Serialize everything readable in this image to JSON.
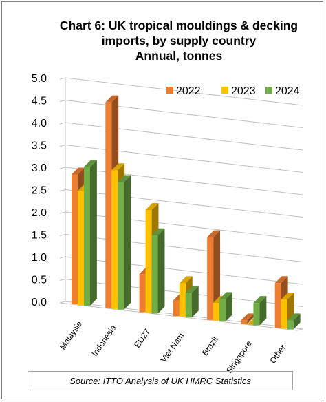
{
  "chart_data": {
    "type": "bar",
    "title_lines": [
      "Chart 6: UK tropical mouldings & decking",
      "imports, by supply country",
      "Annual, tonnes"
    ],
    "categories": [
      "Malaysia",
      "Indonesia",
      "EU27",
      "Viet Nam",
      "Brazil",
      "Singapore",
      "Other"
    ],
    "series": [
      {
        "name": "2022",
        "color": "#ED7D31",
        "values": [
          2.9,
          4.6,
          0.85,
          0.35,
          1.85,
          0.08,
          1.0
        ]
      },
      {
        "name": "2023",
        "color": "#FFC000",
        "values": [
          2.55,
          3.1,
          2.3,
          0.75,
          0.4,
          0.0,
          0.65
        ]
      },
      {
        "name": "2024",
        "color": "#70AD47",
        "values": [
          3.1,
          2.85,
          1.75,
          0.55,
          0.5,
          0.5,
          0.2
        ]
      }
    ],
    "y_ticks": [
      "5.0",
      "4.5",
      "4.0",
      "3.5",
      "3.0",
      "2.5",
      "2.0",
      "1.5",
      "1.0",
      "0.5",
      "0.0"
    ],
    "ylim": [
      0,
      5
    ],
    "grid": true,
    "legend_position": "top-right",
    "source": "Source: ITTO Analysis of UK HMRC Statistics"
  }
}
